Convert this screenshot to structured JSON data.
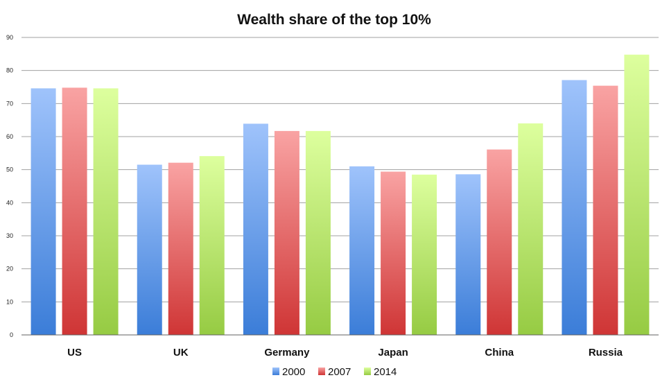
{
  "chart_data": {
    "type": "bar",
    "title": "Wealth share of the top 10%",
    "xlabel": "",
    "ylabel": "",
    "ylim": [
      0,
      90
    ],
    "yticks": [
      0,
      10,
      20,
      30,
      40,
      50,
      60,
      70,
      80,
      90
    ],
    "grid": true,
    "legend_position": "bottom",
    "categories": [
      "US",
      "UK",
      "Germany",
      "Japan",
      "China",
      "Russia"
    ],
    "series": [
      {
        "name": "2000",
        "values": [
          74.6,
          51.5,
          63.9,
          51.0,
          48.6,
          77.1
        ]
      },
      {
        "name": "2007",
        "values": [
          74.8,
          52.1,
          61.7,
          49.4,
          56.1,
          75.4
        ]
      },
      {
        "name": "2014",
        "values": [
          74.6,
          54.1,
          61.7,
          48.5,
          64.0,
          84.8
        ]
      }
    ],
    "colors": {
      "2000": {
        "top": "#9fc3fb",
        "bottom": "#3b7dd8"
      },
      "2007": {
        "top": "#f9a3a3",
        "bottom": "#cf3535"
      },
      "2014": {
        "top": "#ddff9e",
        "bottom": "#96cb43"
      }
    }
  }
}
